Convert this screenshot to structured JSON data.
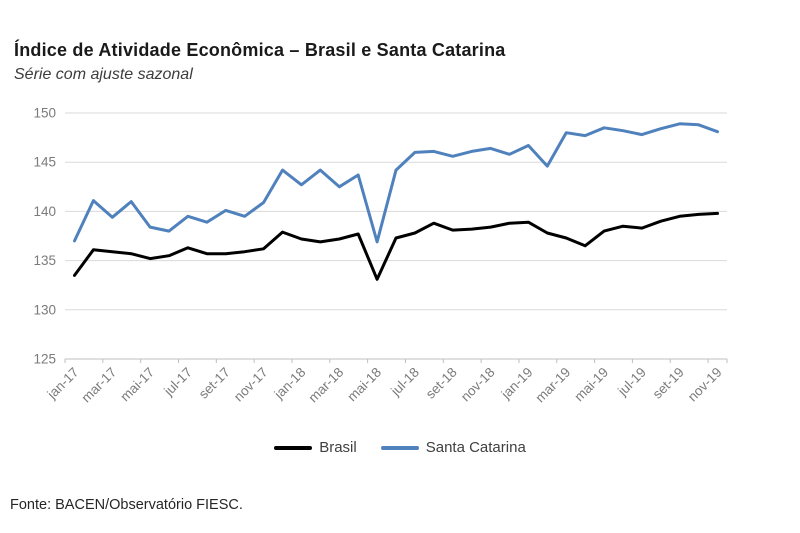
{
  "header": {
    "title": "Índice de Atividade Econômica – Brasil e Santa Catarina",
    "subtitle": "Série com ajuste sazonal"
  },
  "footer": {
    "source": "Fonte: BACEN/Observatório FIESC."
  },
  "chart_data": {
    "type": "line",
    "title": "Índice de Atividade Econômica – Brasil e Santa Catarina",
    "subtitle": "Série com ajuste sazonal",
    "x": [
      "jan-17",
      "fev-17",
      "mar-17",
      "abr-17",
      "mai-17",
      "jun-17",
      "jul-17",
      "ago-17",
      "set-17",
      "out-17",
      "nov-17",
      "dez-17",
      "jan-18",
      "fev-18",
      "mar-18",
      "abr-18",
      "mai-18",
      "jun-18",
      "jul-18",
      "ago-18",
      "set-18",
      "out-18",
      "nov-18",
      "dez-18",
      "jan-19",
      "fev-19",
      "mar-19",
      "abr-19",
      "mai-19",
      "jun-19",
      "jul-19",
      "ago-19",
      "set-19",
      "out-19",
      "nov-19"
    ],
    "x_tick_labels": [
      "jan-17",
      "mar-17",
      "mai-17",
      "jul-17",
      "set-17",
      "nov-17",
      "jan-18",
      "mar-18",
      "mai-18",
      "jul-18",
      "set-18",
      "nov-18",
      "jan-19",
      "mar-19",
      "mai-19",
      "jul-19",
      "set-19",
      "nov-19"
    ],
    "series": [
      {
        "name": "Brasil",
        "color": "#000000",
        "values": [
          133.5,
          136.1,
          135.9,
          135.7,
          135.2,
          135.5,
          136.3,
          135.7,
          135.7,
          135.9,
          136.2,
          137.9,
          137.2,
          136.9,
          137.2,
          137.7,
          133.1,
          137.3,
          137.8,
          138.8,
          138.1,
          138.2,
          138.4,
          138.8,
          138.9,
          137.8,
          137.3,
          136.5,
          138.0,
          138.5,
          138.3,
          139.0,
          139.5,
          139.7,
          139.8
        ]
      },
      {
        "name": "Santa Catarina",
        "color": "#4f81bd",
        "values": [
          137.0,
          141.1,
          139.4,
          141.0,
          138.4,
          138.0,
          139.5,
          138.9,
          140.1,
          139.5,
          140.9,
          144.2,
          142.7,
          144.2,
          142.5,
          143.7,
          136.9,
          144.2,
          146.0,
          146.1,
          145.6,
          146.1,
          146.4,
          145.8,
          146.7,
          144.6,
          148.0,
          147.7,
          148.5,
          148.2,
          147.8,
          148.4,
          148.9,
          148.8,
          148.1
        ]
      }
    ],
    "ylim": [
      125,
      150
    ],
    "yticks": [
      125,
      130,
      135,
      140,
      145,
      150
    ],
    "grid": true,
    "legend_position": "bottom",
    "axis_label_color": "#7b7b7b",
    "gridline_color": "#d9d9d9"
  }
}
